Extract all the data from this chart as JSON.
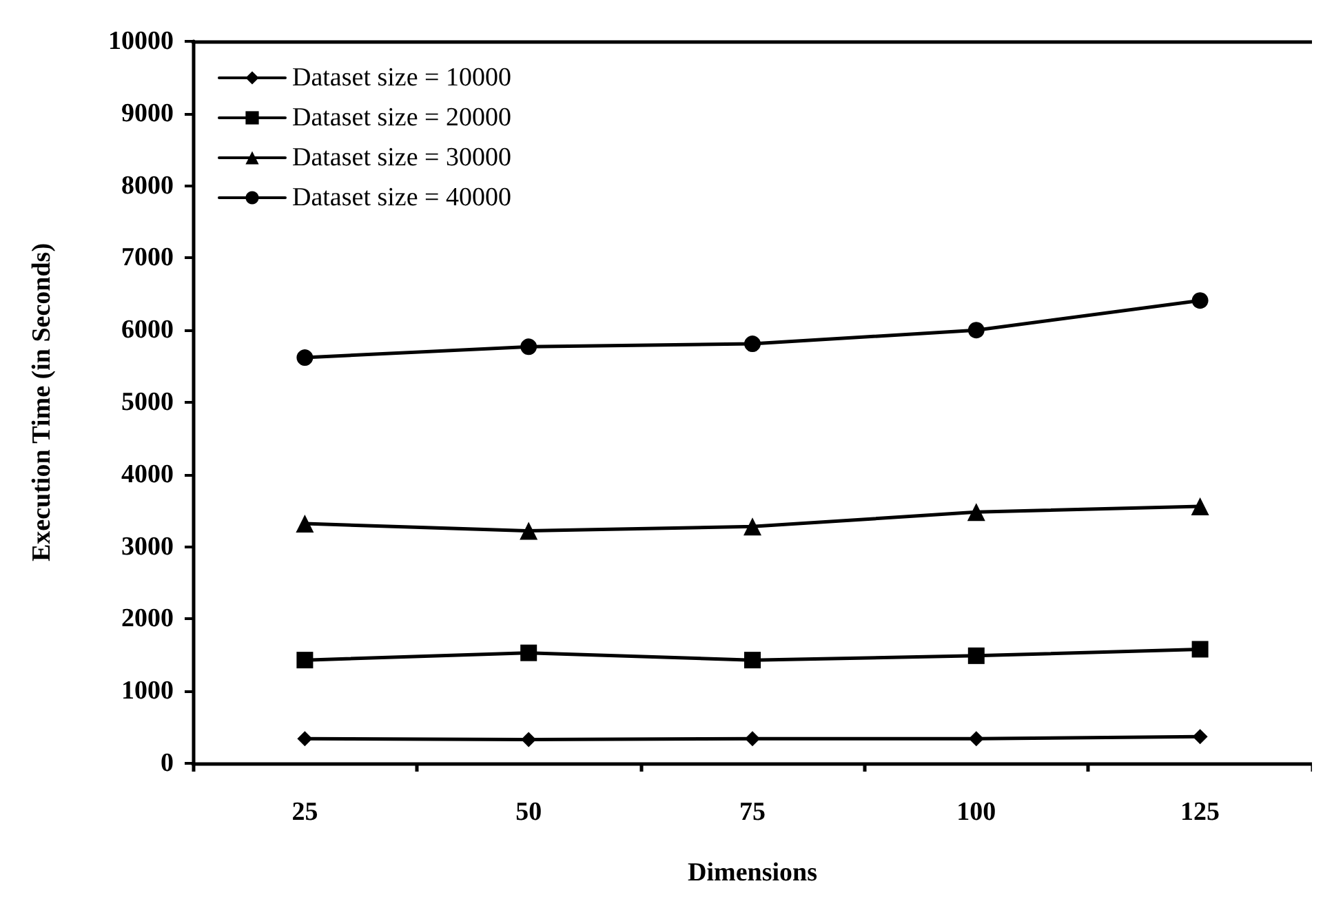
{
  "chart_data": {
    "type": "line",
    "xlabel": "Dimensions",
    "ylabel": "Execution Time (in Seconds)",
    "categories": [
      "25",
      "50",
      "75",
      "100",
      "125"
    ],
    "series": [
      {
        "name": "Dataset size = 10000",
        "color": "#000000",
        "marker": "diamond",
        "values": [
          340,
          330,
          340,
          340,
          370
        ]
      },
      {
        "name": "Dataset size = 20000",
        "color": "#000000",
        "marker": "square",
        "values": [
          1430,
          1530,
          1430,
          1490,
          1580
        ]
      },
      {
        "name": "Dataset size = 30000",
        "color": "#000000",
        "marker": "triangle",
        "values": [
          3320,
          3220,
          3280,
          3480,
          3560
        ]
      },
      {
        "name": "Dataset size = 40000",
        "color": "#000000",
        "marker": "circle",
        "values": [
          5620,
          5770,
          5810,
          6000,
          6410
        ]
      }
    ],
    "ylim": [
      0,
      10000
    ],
    "yticks": [
      0,
      1000,
      2000,
      3000,
      4000,
      5000,
      6000,
      7000,
      8000,
      9000,
      10000
    ],
    "grid": false,
    "legend": "top left",
    "line_style": "solid"
  }
}
